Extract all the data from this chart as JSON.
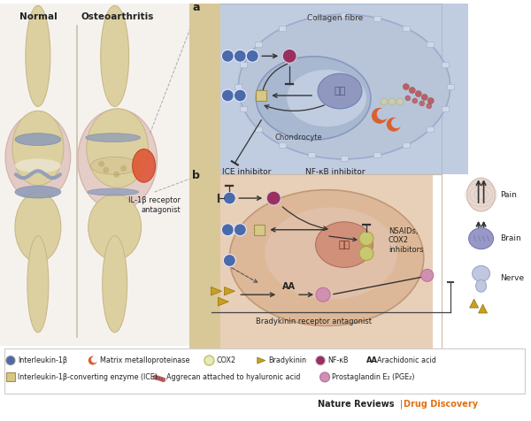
{
  "bg_color": "#ffffff",
  "fig_width": 6.0,
  "fig_height": 4.76,
  "normal_label": "Normal",
  "oa_label": "Osteoarthritis",
  "panel_a_label": "a",
  "panel_b_label": "b",
  "collagen_fibre_label": "Collagen fibre",
  "chondrocyte_label": "Chondrocyte",
  "ice_inhibitor_label": "ICE inhibitor",
  "nfkb_inhibitor_label": "NF-κB inhibitor",
  "il1b_receptor_label": "IL-1β receptor\nantagonist",
  "nsaids_label": "NSAIDs,\nCOX2\ninhibitors",
  "aa_label": "AA",
  "bradykinin_receptor_label": "Bradykinin receptor antagonist",
  "pain_label": "Pain",
  "brain_label": "Brain",
  "nerve_label": "Nerve",
  "nature_reviews_label": "Nature Reviews",
  "drug_discovery_label": "Drug Discovery",
  "il1b_color": "#4a6aac",
  "nfkb_color": "#9b3060",
  "mmp_color": "#d96030",
  "cox2_color": "#c8c870",
  "brad_color": "#c8a020",
  "ice_color": "#d8c888",
  "pge2_color": "#d090b0",
  "aggrecan_color": "#b84848",
  "panel_a_bg": "#b8c8dc",
  "panel_b_bg": "#e8c8b0",
  "left_bg": "#e8e0d0",
  "bone_color": "#ddd0a0",
  "synovial_color": "#c8b898",
  "cartilage_color": "#8898b8",
  "tissue_pink": "#d8b0a8"
}
